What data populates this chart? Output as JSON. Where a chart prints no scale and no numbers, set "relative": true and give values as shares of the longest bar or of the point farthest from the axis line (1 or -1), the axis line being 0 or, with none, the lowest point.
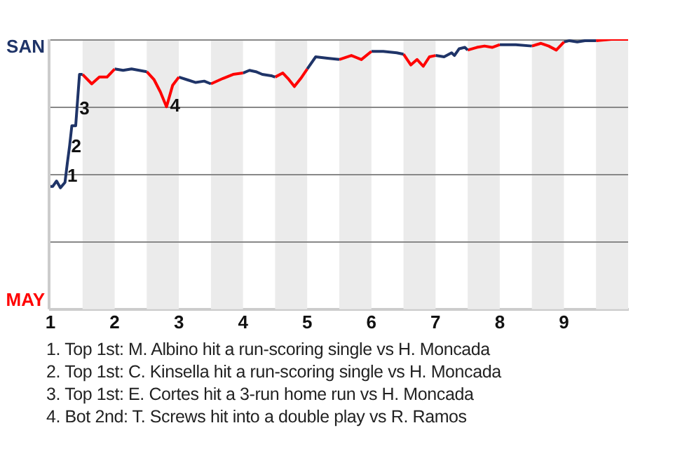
{
  "chart_data": {
    "type": "line",
    "relative": true,
    "xlim": [
      1,
      10
    ],
    "xticks": [
      1,
      2,
      3,
      4,
      5,
      6,
      7,
      8,
      9
    ],
    "marker": "none",
    "series": [
      {
        "color": "#1f3468",
        "x": [
          1,
          1.036,
          1.095,
          1.155,
          1.226,
          1.262,
          1.298,
          1.333,
          1.393,
          1.452,
          1.5
        ],
        "values": [
          0.455,
          0.455,
          0.475,
          0.45,
          0.47,
          0.54,
          0.605,
          0.68,
          0.68,
          0.87,
          0.87
        ]
      },
      {
        "color": "#ff0000",
        "x": [
          1.5,
          1.643,
          1.762,
          1.881,
          2
        ],
        "values": [
          0.87,
          0.835,
          0.86,
          0.86,
          0.89
        ]
      },
      {
        "color": "#1f3468",
        "x": [
          2,
          2.132,
          2.263,
          2.5
        ],
        "values": [
          0.89,
          0.885,
          0.89,
          0.88
        ]
      },
      {
        "color": "#ff0000",
        "x": [
          2.5,
          2.615,
          2.712,
          2.808,
          2.904,
          3
        ],
        "values": [
          0.88,
          0.85,
          0.805,
          0.75,
          0.83,
          0.86
        ]
      },
      {
        "color": "#1f3468",
        "x": [
          3,
          3.132,
          3.263,
          3.395,
          3.5
        ],
        "values": [
          0.86,
          0.85,
          0.84,
          0.845,
          0.835
        ]
      },
      {
        "color": "#ff0000",
        "x": [
          3.5,
          3.688,
          3.844,
          4
        ],
        "values": [
          0.835,
          0.855,
          0.87,
          0.875
        ]
      },
      {
        "color": "#1f3468",
        "x": [
          4,
          4.1,
          4.2,
          4.3,
          4.44,
          4.5
        ],
        "values": [
          0.875,
          0.885,
          0.88,
          0.87,
          0.865,
          0.86
        ]
      },
      {
        "color": "#ff0000",
        "x": [
          4.5,
          4.62,
          4.7,
          4.8,
          4.9,
          5
        ],
        "values": [
          0.86,
          0.875,
          0.855,
          0.825,
          0.855,
          0.89
        ]
      },
      {
        "color": "#1f3468",
        "x": [
          5,
          5.132,
          5.316,
          5.5
        ],
        "values": [
          0.89,
          0.935,
          0.93,
          0.925
        ]
      },
      {
        "color": "#ff0000",
        "x": [
          5.5,
          5.688,
          5.844,
          6
        ],
        "values": [
          0.925,
          0.94,
          0.925,
          0.955
        ]
      },
      {
        "color": "#1f3468",
        "x": [
          6,
          6.184,
          6.395,
          6.5
        ],
        "values": [
          0.955,
          0.955,
          0.95,
          0.945
        ]
      },
      {
        "color": "#ff0000",
        "x": [
          6.5,
          6.615,
          6.712,
          6.808,
          6.904,
          7
        ],
        "values": [
          0.945,
          0.905,
          0.925,
          0.9,
          0.935,
          0.94
        ]
      },
      {
        "color": "#1f3468",
        "x": [
          7,
          7.132,
          7.25,
          7.294,
          7.368,
          7.456,
          7.5
        ],
        "values": [
          0.94,
          0.935,
          0.95,
          0.94,
          0.965,
          0.97,
          0.96
        ]
      },
      {
        "color": "#ff0000",
        "x": [
          7.5,
          7.643,
          7.762,
          7.881,
          8
        ],
        "values": [
          0.96,
          0.97,
          0.975,
          0.97,
          0.98
        ]
      },
      {
        "color": "#1f3468",
        "x": [
          8,
          8.25,
          8.5
        ],
        "values": [
          0.98,
          0.98,
          0.975
        ]
      },
      {
        "color": "#ff0000",
        "x": [
          8.5,
          8.643,
          8.762,
          8.881,
          9
        ],
        "values": [
          0.975,
          0.985,
          0.975,
          0.96,
          0.99
        ]
      },
      {
        "color": "#1f3468",
        "x": [
          9,
          9.086,
          9.207,
          9.328,
          9.5
        ],
        "values": [
          0.99,
          0.995,
          0.99,
          0.995,
          0.995
        ]
      },
      {
        "color": "#ff0000",
        "x": [
          9.5,
          9.738,
          10
        ],
        "values": [
          0.995,
          1,
          1
        ]
      }
    ],
    "bands": [
      {
        "axis": "x",
        "from": 1.5,
        "to": 2,
        "color": "#ebebeb"
      },
      {
        "axis": "x",
        "from": 2.5,
        "to": 3,
        "color": "#ebebeb"
      },
      {
        "axis": "x",
        "from": 3.5,
        "to": 4,
        "color": "#ebebeb"
      },
      {
        "axis": "x",
        "from": 4.5,
        "to": 5,
        "color": "#ebebeb"
      },
      {
        "axis": "x",
        "from": 5.5,
        "to": 6,
        "color": "#ebebeb"
      },
      {
        "axis": "x",
        "from": 6.5,
        "to": 7,
        "color": "#ebebeb"
      },
      {
        "axis": "x",
        "from": 7.5,
        "to": 8,
        "color": "#ebebeb"
      },
      {
        "axis": "x",
        "from": 8.5,
        "to": 9,
        "color": "#ebebeb"
      },
      {
        "axis": "x",
        "from": 9.5,
        "to": 10,
        "color": "#ebebeb"
      }
    ],
    "ref_lines": [
      {
        "axis": "y",
        "value": 0.25,
        "color": "#888888"
      },
      {
        "axis": "y",
        "value": 0.5,
        "color": "#888888"
      },
      {
        "axis": "y",
        "value": 0.75,
        "color": "#888888"
      },
      {
        "axis": "y",
        "value": 1,
        "color": "#888888"
      }
    ],
    "annotations": [
      "SAN",
      "MAY",
      {
        "text": "1",
        "x": 1.34,
        "y": 0.49
      },
      {
        "text": "2",
        "x": 1.4,
        "y": 0.6
      },
      {
        "text": "3",
        "x": 1.53,
        "y": 0.74
      },
      {
        "text": "4",
        "x": 2.94,
        "y": 0.75
      },
      "1. Top 1st: M. Albino hit a run-scoring single vs H. Moncada",
      "2. Top 1st: C. Kinsella hit a run-scoring single vs H. Moncada",
      "3. Top 1st: E. Cortes hit a 3-run home run vs H. Moncada",
      "4. Bot 2nd: T. Screws hit into a double play vs R. Ramos"
    ]
  }
}
